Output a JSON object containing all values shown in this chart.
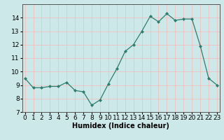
{
  "x": [
    0,
    1,
    2,
    3,
    4,
    5,
    6,
    7,
    8,
    9,
    10,
    11,
    12,
    13,
    14,
    15,
    16,
    17,
    18,
    19,
    20,
    21,
    22,
    23
  ],
  "y": [
    9.5,
    8.8,
    8.8,
    8.9,
    8.9,
    9.2,
    8.6,
    8.5,
    7.5,
    7.9,
    9.1,
    10.2,
    11.5,
    12.0,
    13.0,
    14.1,
    13.7,
    14.3,
    13.8,
    13.9,
    13.9,
    11.9,
    9.5,
    9.0
  ],
  "xlabel": "Humidex (Indice chaleur)",
  "ylim": [
    7,
    15
  ],
  "xlim": [
    -0.3,
    23.3
  ],
  "yticks": [
    7,
    8,
    9,
    10,
    11,
    12,
    13,
    14
  ],
  "xticks": [
    0,
    1,
    2,
    3,
    4,
    5,
    6,
    7,
    8,
    9,
    10,
    11,
    12,
    13,
    14,
    15,
    16,
    17,
    18,
    19,
    20,
    21,
    22,
    23
  ],
  "line_color": "#2d7d6e",
  "marker": "D",
  "marker_size": 2.0,
  "bg_color": "#cde8e8",
  "grid_color": "#f0c0c0",
  "xlabel_fontsize": 7,
  "tick_fontsize": 6.5,
  "linewidth": 0.9
}
